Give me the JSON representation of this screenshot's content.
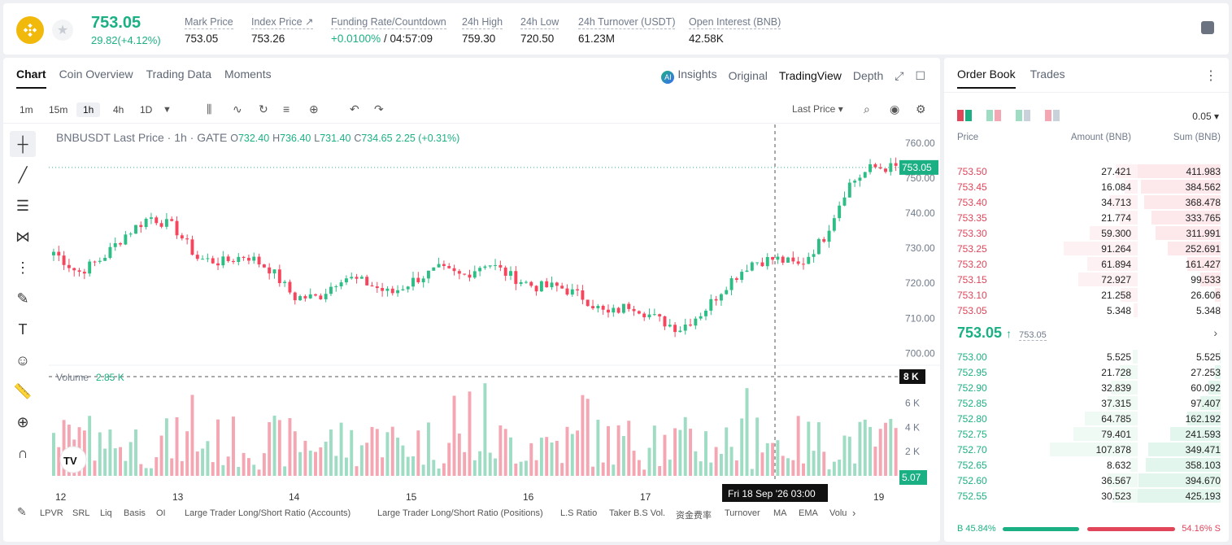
{
  "colors": {
    "up": "#2ebd85",
    "down": "#f6465d",
    "upVol": "#9fdcc4",
    "downVol": "#f4a7b2",
    "accent": "#1bb083"
  },
  "ticker": {
    "price": "753.05",
    "change": "29.82(+4.12%)",
    "stats": [
      {
        "label": "Mark Price",
        "value": "753.05"
      },
      {
        "label": "Index Price ↗",
        "value": "753.26"
      },
      {
        "label": "Funding Rate/Countdown",
        "value_green": "+0.0100%",
        "value": " / 04:57:09"
      },
      {
        "label": "24h High",
        "value": "759.30"
      },
      {
        "label": "24h Low",
        "value": "720.50"
      },
      {
        "label": "24h Turnover (USDT)",
        "value": "61.23M"
      },
      {
        "label": "Open Interest (BNB)",
        "value": "42.58K"
      }
    ]
  },
  "chart_tabs": [
    "Chart",
    "Coin Overview",
    "Trading Data",
    "Moments"
  ],
  "view_tabs": {
    "insights": "Insights",
    "original": "Original",
    "tradingview": "TradingView",
    "depth": "Depth"
  },
  "timeframes": [
    "1m",
    "15m",
    "1h",
    "4h",
    "1D"
  ],
  "price_type": "Last Price ▾",
  "ohlc": {
    "symbol": "BNBUSDT Last Price · 1h · GATE",
    "o": "732.40",
    "h": "736.40",
    "l": "731.40",
    "c": "734.65",
    "chg": "2.25 (+0.31%)"
  },
  "volume_label": "Volume",
  "volume_value": "2.85 K",
  "price_tag": "753.05",
  "volume_tag_top": "8 K",
  "volume_tag_last": "5.07",
  "crosshair_label": "Fri 18 Sep '26   03:00",
  "bottom_indicators": [
    "LPVR",
    "SRL",
    "Liq",
    "Basis",
    "OI",
    "Large Trader Long/Short Ratio (Accounts)",
    "Large Trader Long/Short Ratio (Positions)",
    "L.S Ratio",
    "Taker B.S Vol.",
    "资金费率",
    "Turnover",
    "MA",
    "EMA",
    "Volu"
  ],
  "chart_data": {
    "type": "candlestick",
    "y_range": [
      698,
      763
    ],
    "y_ticks": [
      "760.00",
      "750.00",
      "740.00",
      "730.00",
      "720.00",
      "710.00",
      "700.00"
    ],
    "x_ticks": [
      "12",
      "13",
      "14",
      "15",
      "16",
      "17",
      "18",
      "19"
    ],
    "volume_ticks": [
      "6 K",
      "4 K",
      "2 K"
    ],
    "volume_range": [
      0,
      8200
    ],
    "close_anchors": [
      729,
      723,
      727,
      734,
      739,
      736,
      727,
      726,
      728,
      724,
      716,
      716,
      722,
      720,
      717,
      721,
      724,
      722,
      726,
      722,
      719,
      719,
      716,
      711,
      714,
      710,
      707,
      712,
      720,
      726,
      727,
      725,
      733,
      748,
      753,
      753
    ]
  },
  "order_book": {
    "tabs": [
      "Order Book",
      "Trades"
    ],
    "precision": "0.05 ▾",
    "headers": {
      "price": "Price",
      "amount": "Amount (BNB)",
      "sum": "Sum (BNB)"
    },
    "asks": [
      {
        "price": "753.50",
        "amount": "27.421",
        "sum": "411.983"
      },
      {
        "price": "753.45",
        "amount": "16.084",
        "sum": "384.562"
      },
      {
        "price": "753.40",
        "amount": "34.713",
        "sum": "368.478"
      },
      {
        "price": "753.35",
        "amount": "21.774",
        "sum": "333.765"
      },
      {
        "price": "753.30",
        "amount": "59.300",
        "sum": "311.991"
      },
      {
        "price": "753.25",
        "amount": "91.264",
        "sum": "252.691"
      },
      {
        "price": "753.20",
        "amount": "61.894",
        "sum": "161.427"
      },
      {
        "price": "753.15",
        "amount": "72.927",
        "sum": "99.533"
      },
      {
        "price": "753.10",
        "amount": "21.258",
        "sum": "26.606"
      },
      {
        "price": "753.05",
        "amount": "5.348",
        "sum": "5.348"
      }
    ],
    "mid_price": "753.05",
    "mid_ref": "753.05",
    "bids": [
      {
        "price": "753.00",
        "amount": "5.525",
        "sum": "5.525"
      },
      {
        "price": "752.95",
        "amount": "21.728",
        "sum": "27.253"
      },
      {
        "price": "752.90",
        "amount": "32.839",
        "sum": "60.092"
      },
      {
        "price": "752.85",
        "amount": "37.315",
        "sum": "97.407"
      },
      {
        "price": "752.80",
        "amount": "64.785",
        "sum": "162.192"
      },
      {
        "price": "752.75",
        "amount": "79.401",
        "sum": "241.593"
      },
      {
        "price": "752.70",
        "amount": "107.878",
        "sum": "349.471"
      },
      {
        "price": "752.65",
        "amount": "8.632",
        "sum": "358.103"
      },
      {
        "price": "752.60",
        "amount": "36.567",
        "sum": "394.670"
      },
      {
        "price": "752.55",
        "amount": "30.523",
        "sum": "425.193"
      }
    ],
    "buy_ratio": "B 45.84%",
    "sell_ratio": "54.16% S",
    "buy_pct": 45.84
  }
}
